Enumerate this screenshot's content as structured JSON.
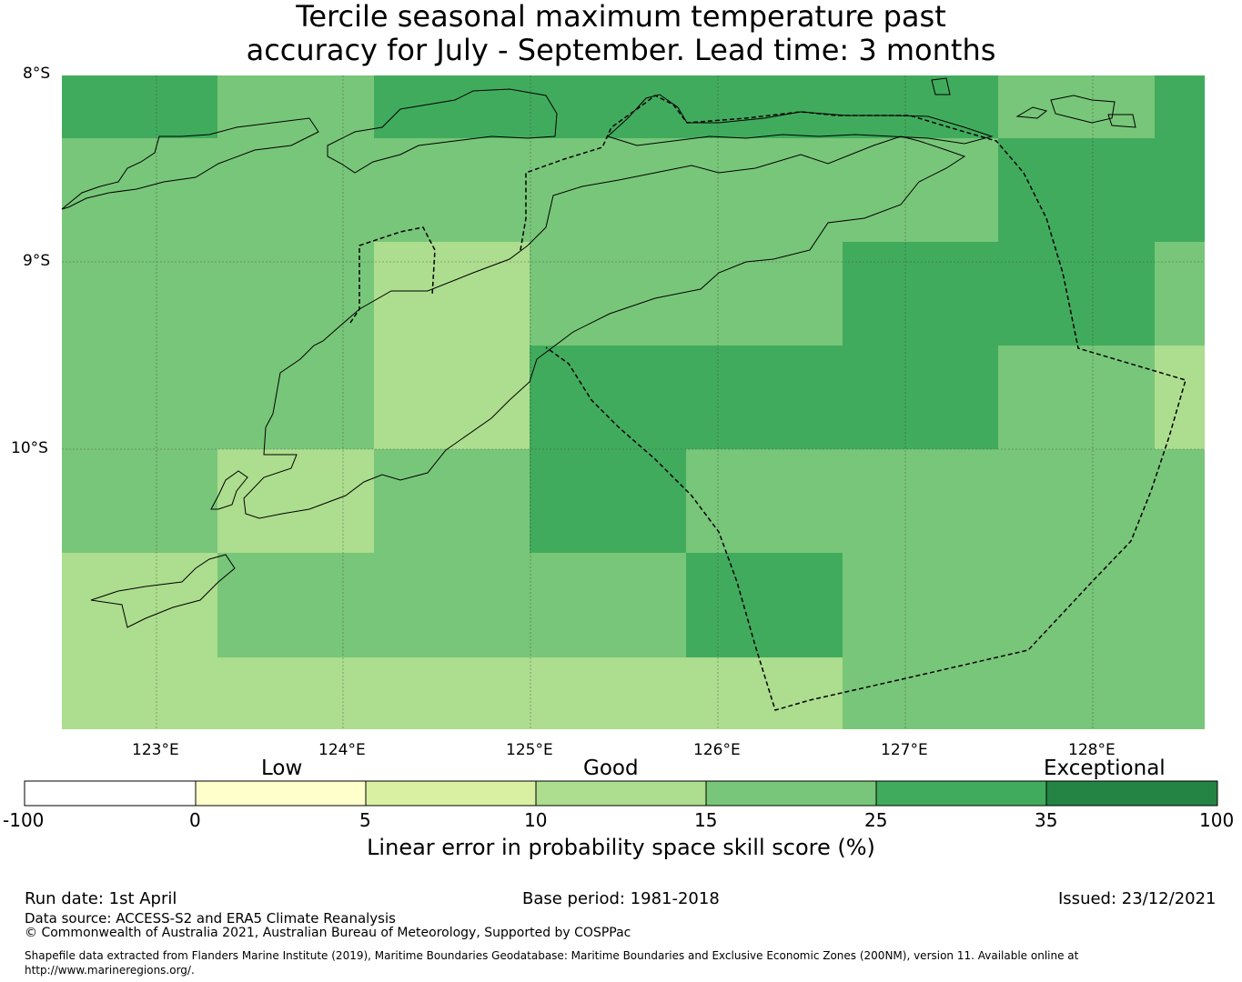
{
  "title": {
    "line1": "Tercile seasonal maximum temperature past",
    "line2": "accuracy for July - September. Lead time: 3 months"
  },
  "map": {
    "lat_labels": [
      "8°S",
      "9°S",
      "10°S"
    ],
    "lon_labels": [
      "123°E",
      "124°E",
      "125°E",
      "126°E",
      "127°E",
      "128°E"
    ],
    "grid_values_pct": [
      [
        30,
        20,
        30,
        30,
        30,
        30,
        20,
        30
      ],
      [
        20,
        20,
        20,
        20,
        20,
        20,
        30,
        30
      ],
      [
        20,
        20,
        12,
        20,
        20,
        30,
        30,
        20
      ],
      [
        20,
        20,
        12,
        30,
        30,
        30,
        20,
        12
      ],
      [
        20,
        12,
        20,
        30,
        20,
        20,
        20,
        20
      ],
      [
        12,
        20,
        20,
        20,
        30,
        20,
        20,
        20
      ],
      [
        12,
        12,
        12,
        12,
        12,
        20,
        20,
        20
      ]
    ],
    "colors": {
      "band_0_5": "#ffffcc",
      "band_5_10": "#d9f0a3",
      "band_10_15": "#addd8e",
      "band_15_25": "#78c679",
      "band_25_35": "#41ab5d",
      "band_35_100": "#238443"
    }
  },
  "colorbar": {
    "categories": [
      "Low",
      "Good",
      "Exceptional"
    ],
    "ticks": [
      "-100",
      "0",
      "5",
      "10",
      "15",
      "25",
      "35",
      "100"
    ],
    "colors": [
      "#ffffff",
      "#ffffcc",
      "#d9f0a3",
      "#addd8e",
      "#78c679",
      "#41ab5d",
      "#238443"
    ],
    "label": "Linear error in probability space skill score (%)"
  },
  "footer": {
    "run_date": "Run date: 1st April",
    "base_period": "Base period: 1981-2018",
    "issued": "Issued: 23/12/2021",
    "data_source": "Data source: ACCESS-S2 and ERA5 Climate Reanalysis",
    "copyright": "© Commonwealth of Australia 2021, Australian Bureau of Meteorology, Supported by COSPPac",
    "shapefile_line1": "Shapefile data extracted from Flanders Marine Institute (2019), Maritime Boundaries Geodatabase: Maritime Boundaries and Exclusive Economic Zones (200NM), version 11. Available online at",
    "shapefile_line2": "http://www.marineregions.org/."
  }
}
